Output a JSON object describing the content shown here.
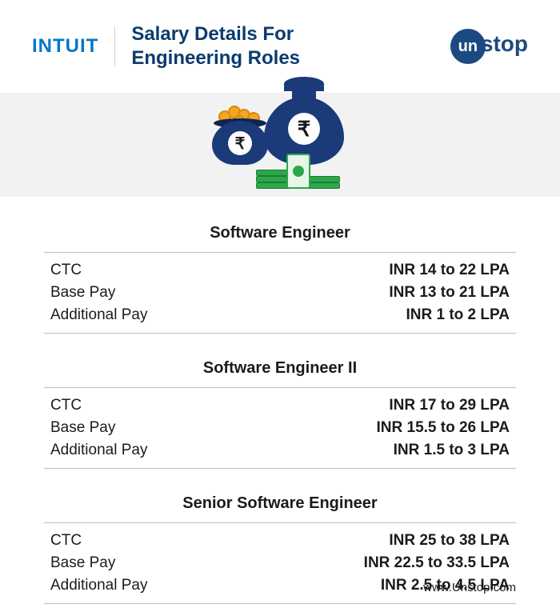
{
  "header": {
    "intuit_logo": "INTUIT",
    "title_line1": "Salary Details For",
    "title_line2": "Engineering Roles",
    "unstop_circle": "un",
    "unstop_text": "stop"
  },
  "colors": {
    "intuit_blue": "#0077c5",
    "title_blue": "#0b3b6f",
    "unstop_navy": "#1c4980",
    "bag_navy": "#1b3a7a",
    "coin_gold": "#f5a623",
    "cash_green": "#2ba84a",
    "band_gray": "#f2f2f2",
    "divider_gray": "#bdbdbd",
    "text_black": "#1b1b1b"
  },
  "roles": [
    {
      "title": "Software Engineer",
      "rows": [
        {
          "label": "CTC",
          "value": "INR 14 to 22 LPA"
        },
        {
          "label": "Base Pay",
          "value": "INR 13 to 21 LPA"
        },
        {
          "label": "Additional Pay",
          "value": "INR 1 to 2 LPA"
        }
      ]
    },
    {
      "title": "Software Engineer II",
      "rows": [
        {
          "label": "CTC",
          "value": "INR 17 to 29 LPA"
        },
        {
          "label": "Base Pay",
          "value": "INR 15.5 to 26 LPA"
        },
        {
          "label": "Additional Pay",
          "value": "INR 1.5 to 3 LPA"
        }
      ]
    },
    {
      "title": "Senior Software Engineer",
      "rows": [
        {
          "label": "CTC",
          "value": "INR 25 to 38 LPA"
        },
        {
          "label": "Base Pay",
          "value": "INR 22.5 to 33.5 LPA"
        },
        {
          "label": "Additional Pay",
          "value": "INR 2.5 to 4.5 LPA"
        }
      ]
    }
  ],
  "footer": {
    "url": "www.Unstop.com"
  },
  "typography": {
    "title_fontsize": 24,
    "role_title_fontsize": 20,
    "row_fontsize": 19,
    "footer_fontsize": 15
  }
}
